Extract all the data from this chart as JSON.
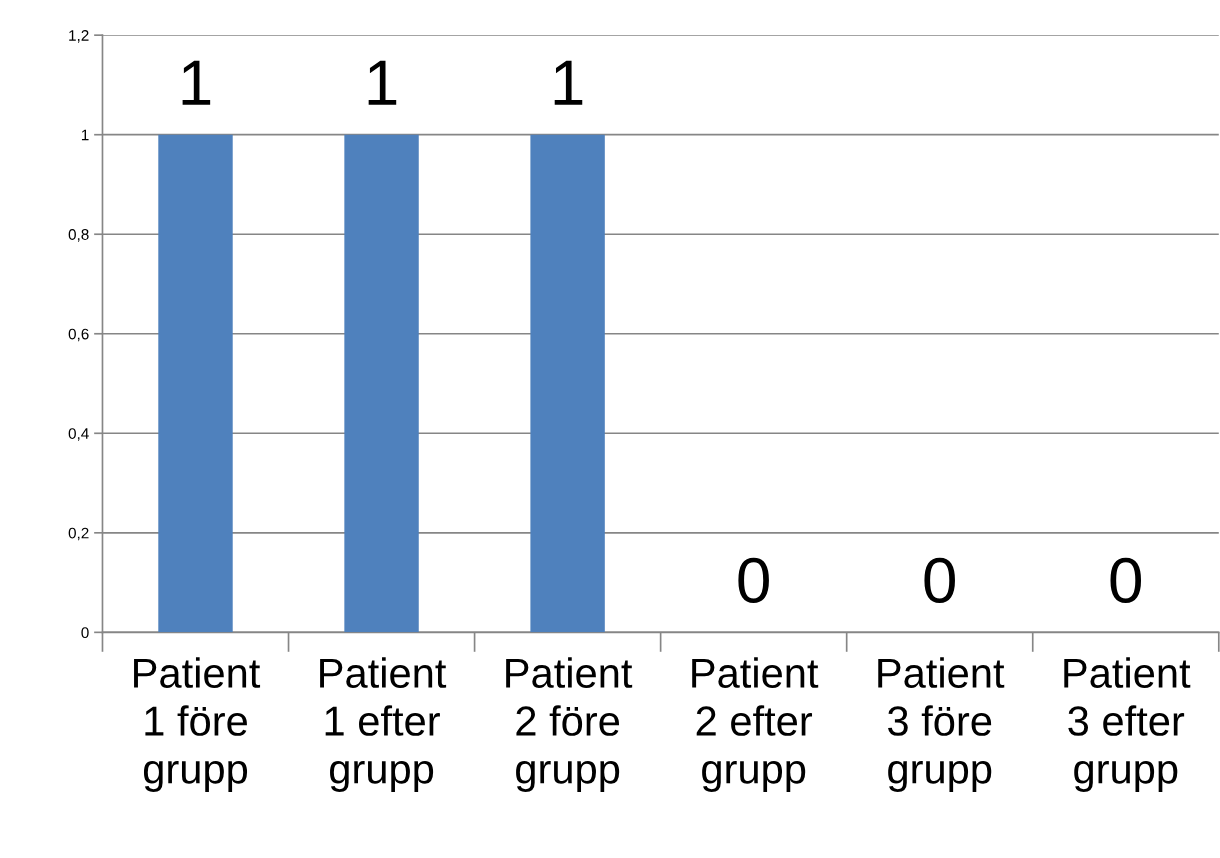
{
  "chart_data": {
    "type": "bar",
    "categories": [
      "Patient 1 före grupp",
      "Patient 1 efter grupp",
      "Patient 2 före grupp",
      "Patient 2 efter grupp",
      "Patient 3 före grupp",
      "Patient 3 efter grupp"
    ],
    "values": [
      1,
      1,
      1,
      0,
      0,
      0
    ],
    "color": "#4f81bd",
    "ylim": [
      0,
      1.2
    ],
    "yticks": [
      {
        "value": 0,
        "label": "0"
      },
      {
        "value": 0.2,
        "label": "0,2"
      },
      {
        "value": 0.4,
        "label": "0,4"
      },
      {
        "value": 0.6,
        "label": "0,6"
      },
      {
        "value": 0.8,
        "label": "0,8"
      },
      {
        "value": 1,
        "label": "1"
      },
      {
        "value": 1.2,
        "label": "1,2"
      }
    ],
    "grid": "y",
    "data_labels": true
  }
}
